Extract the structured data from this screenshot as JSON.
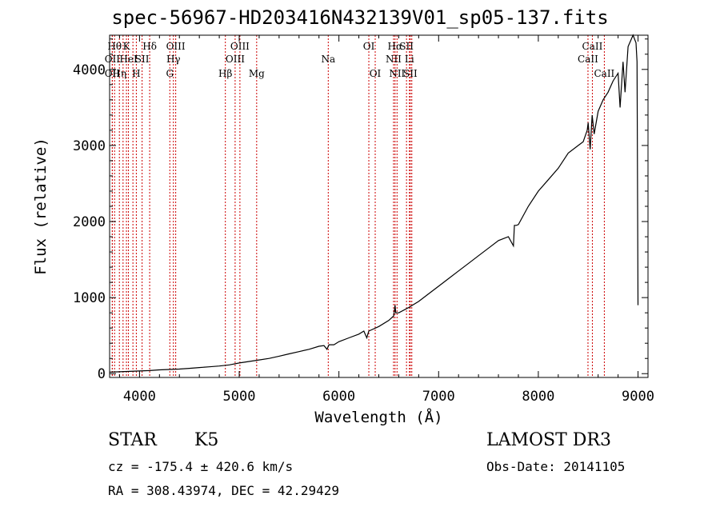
{
  "chart_data": {
    "type": "line",
    "title": "spec-56967-HD203416N432139V01_sp05-137.fits",
    "xlabel": "Wavelength (Å)",
    "ylabel": "Flux (relative)",
    "xlim": [
      3700,
      9100
    ],
    "ylim": [
      -50,
      4450
    ],
    "xticks": [
      4000,
      5000,
      6000,
      7000,
      8000,
      9000
    ],
    "yticks": [
      0,
      1000,
      2000,
      3000,
      4000
    ],
    "xtick_labels": [
      "4000",
      "5000",
      "6000",
      "7000",
      "8000",
      "9000"
    ],
    "ytick_labels": [
      "0",
      "1000",
      "2000",
      "3000",
      "4000"
    ],
    "series": [
      {
        "name": "spectrum",
        "x": [
          3700,
          3800,
          3900,
          4000,
          4100,
          4200,
          4300,
          4400,
          4500,
          4600,
          4700,
          4800,
          4900,
          5000,
          5100,
          5200,
          5300,
          5400,
          5500,
          5600,
          5700,
          5800,
          5850,
          5880,
          5900,
          5950,
          6000,
          6100,
          6200,
          6250,
          6280,
          6290,
          6300,
          6400,
          6500,
          6550,
          6563,
          6570,
          6600,
          6700,
          6800,
          6900,
          7000,
          7100,
          7200,
          7300,
          7400,
          7500,
          7600,
          7700,
          7750,
          7760,
          7780,
          7800,
          7900,
          8000,
          8100,
          8200,
          8300,
          8400,
          8450,
          8490,
          8500,
          8520,
          8540,
          8560,
          8600,
          8650,
          8700,
          8750,
          8800,
          8820,
          8850,
          8870,
          8900,
          8950,
          8980,
          8990,
          9000
        ],
        "y": [
          20,
          25,
          30,
          35,
          40,
          50,
          55,
          60,
          70,
          80,
          90,
          100,
          115,
          140,
          160,
          180,
          200,
          230,
          260,
          290,
          320,
          360,
          370,
          320,
          380,
          380,
          420,
          470,
          520,
          560,
          470,
          520,
          560,
          620,
          700,
          760,
          900,
          800,
          800,
          870,
          950,
          1050,
          1150,
          1250,
          1350,
          1450,
          1550,
          1650,
          1750,
          1800,
          1680,
          1950,
          1950,
          1960,
          2200,
          2400,
          2550,
          2700,
          2900,
          3000,
          3050,
          3200,
          3300,
          2950,
          3400,
          3150,
          3450,
          3600,
          3700,
          3850,
          3950,
          3500,
          4100,
          3700,
          4300,
          4450,
          4350,
          4100,
          900
        ]
      }
    ],
    "lines": [
      {
        "wl": 3750,
        "row": 0,
        "label": "Hθ"
      },
      {
        "wl": 3727,
        "row": 1,
        "label": "OII"
      },
      {
        "wl": 3727,
        "row": 2,
        "label": "OII"
      },
      {
        "wl": 3798,
        "row": 2,
        "label": "Hη"
      },
      {
        "wl": 3835,
        "row": 0,
        "label": ""
      },
      {
        "wl": 3869,
        "row": 0,
        "label": "K"
      },
      {
        "wl": 3889,
        "row": 1,
        "label": "HeI"
      },
      {
        "wl": 3934,
        "row": 0,
        "label": ""
      },
      {
        "wl": 3968,
        "row": 2,
        "label": "H"
      },
      {
        "wl": 4026,
        "row": 1,
        "label": "SII"
      },
      {
        "wl": 4102,
        "row": 0,
        "label": "Hδ"
      },
      {
        "wl": 4304,
        "row": 2,
        "label": "G"
      },
      {
        "wl": 4340,
        "row": 1,
        "label": "Hγ"
      },
      {
        "wl": 4363,
        "row": 0,
        "label": "OIII"
      },
      {
        "wl": 4861,
        "row": 2,
        "label": "Hβ"
      },
      {
        "wl": 4959,
        "row": 1,
        "label": "OIII"
      },
      {
        "wl": 5007,
        "row": 0,
        "label": "OIII"
      },
      {
        "wl": 5175,
        "row": 2,
        "label": "Mg"
      },
      {
        "wl": 5893,
        "row": 1,
        "label": "Na"
      },
      {
        "wl": 6300,
        "row": 0,
        "label": "OI"
      },
      {
        "wl": 6364,
        "row": 2,
        "label": "OI"
      },
      {
        "wl": 6548,
        "row": 1,
        "label": "NII"
      },
      {
        "wl": 6563,
        "row": 0,
        "label": "Hα"
      },
      {
        "wl": 6583,
        "row": 2,
        "label": "NII"
      },
      {
        "wl": 6678,
        "row": 0,
        "label": "SII"
      },
      {
        "wl": 6707,
        "row": 1,
        "label": "Li"
      },
      {
        "wl": 6716,
        "row": 2,
        "label": "SII"
      },
      {
        "wl": 6731,
        "row": 0,
        "label": ""
      },
      {
        "wl": 8498,
        "row": 1,
        "label": "CaII"
      },
      {
        "wl": 8542,
        "row": 0,
        "label": "CaII"
      },
      {
        "wl": 8662,
        "row": 2,
        "label": "CaII"
      }
    ]
  },
  "info": {
    "class_label": "STAR",
    "subclass": "K5",
    "survey": "LAMOST DR3",
    "cz": "cz = -175.4 ± 420.6 km/s",
    "obs_date": "Obs-Date: 20141105",
    "coords": "RA = 308.43974, DEC =  42.29429"
  },
  "colors": {
    "axis": "#000000",
    "spectrum": "#000000",
    "lines": "#cc0000"
  }
}
